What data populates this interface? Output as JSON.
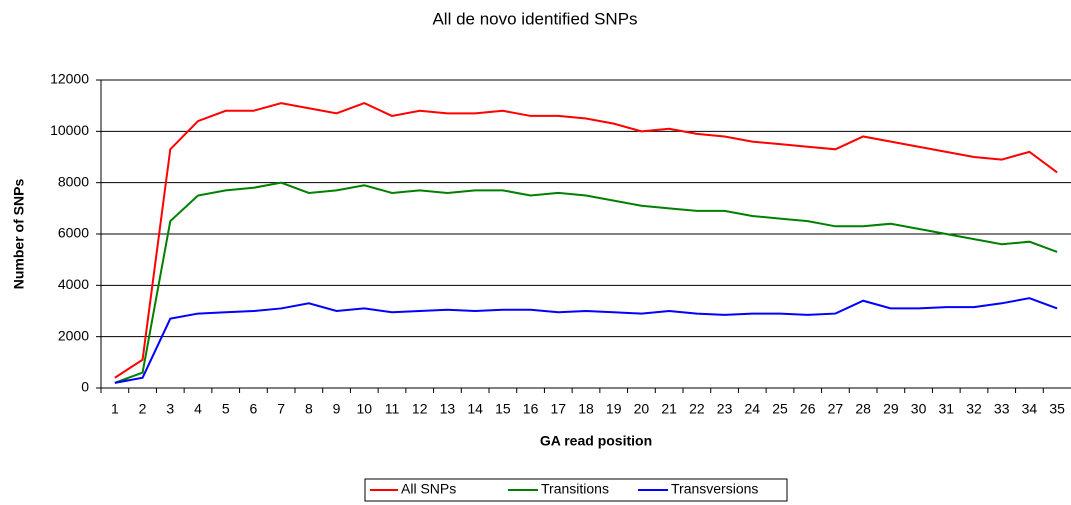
{
  "chart_data": {
    "type": "line",
    "title": "All de novo identified SNPs",
    "x_label": "GA read position",
    "y_label": "Number of SNPs",
    "categories": [
      1,
      2,
      3,
      4,
      5,
      6,
      7,
      8,
      9,
      10,
      11,
      12,
      13,
      14,
      15,
      16,
      17,
      18,
      19,
      20,
      21,
      22,
      23,
      24,
      25,
      26,
      27,
      28,
      29,
      30,
      31,
      32,
      33,
      34,
      35
    ],
    "series": [
      {
        "name": "All SNPs",
        "color": "#ff0000",
        "values": [
          400,
          1100,
          9300,
          10400,
          10800,
          10800,
          11100,
          10900,
          10700,
          11100,
          10600,
          10800,
          10700,
          10700,
          10800,
          10600,
          10600,
          10500,
          10300,
          10000,
          10100,
          9900,
          9800,
          9600,
          9500,
          9400,
          9300,
          9800,
          9600,
          9400,
          9200,
          9000,
          8900,
          9200,
          8400
        ]
      },
      {
        "name": "Transitions",
        "color": "#008000",
        "values": [
          200,
          600,
          6500,
          7500,
          7700,
          7800,
          8000,
          7600,
          7700,
          7900,
          7600,
          7700,
          7600,
          7700,
          7700,
          7500,
          7600,
          7500,
          7300,
          7100,
          7000,
          6900,
          6900,
          6700,
          6600,
          6500,
          6300,
          6300,
          6400,
          6200,
          6000,
          5800,
          5600,
          5700,
          5300
        ]
      },
      {
        "name": "Transversions",
        "color": "#0000ff",
        "values": [
          200,
          400,
          2700,
          2900,
          2950,
          3000,
          3100,
          3300,
          3000,
          3100,
          2950,
          3000,
          3050,
          3000,
          3050,
          3050,
          2950,
          3000,
          2950,
          2900,
          3000,
          2900,
          2850,
          2900,
          2900,
          2850,
          2900,
          3400,
          3100,
          3100,
          3150,
          3150,
          3300,
          3500,
          3100
        ]
      }
    ],
    "ylim": [
      0,
      12000
    ],
    "yticks": [
      0,
      2000,
      4000,
      6000,
      8000,
      10000,
      12000
    ],
    "grid": true,
    "legend": "bottom"
  }
}
